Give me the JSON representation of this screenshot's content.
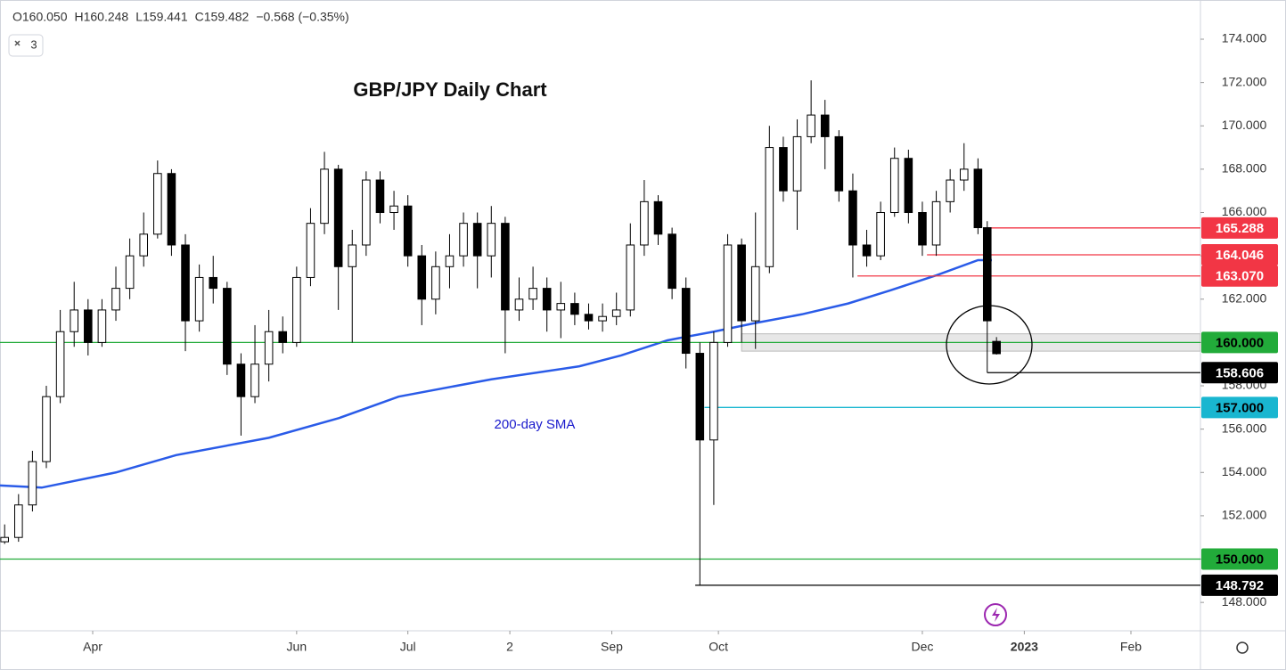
{
  "chart_data": {
    "type": "candlestick",
    "title": "GBP/JPY Daily Chart",
    "header": [
      "O160.050",
      "H160.248",
      "L159.441",
      "C159.482",
      "−0.568 (−0.35%)"
    ],
    "interval_button": "3",
    "up_color": "#ffffff",
    "down_color": "#000000",
    "x": [
      0,
      3,
      6,
      9,
      12,
      15,
      18,
      21,
      24,
      27,
      30,
      33,
      36,
      39,
      42,
      45,
      48,
      51,
      54,
      57,
      60,
      63,
      66,
      69,
      72,
      75,
      78,
      81,
      84,
      87,
      90,
      93,
      96,
      99,
      102,
      105,
      108,
      111,
      114,
      117,
      120,
      123,
      126,
      129,
      132,
      135,
      138,
      141,
      144,
      147,
      150,
      153,
      156,
      159,
      162,
      165,
      168,
      171,
      174,
      177,
      180,
      183,
      186,
      189,
      192,
      195,
      198,
      201,
      204,
      207,
      210,
      212,
      214
    ],
    "open": [
      150.8,
      151.0,
      152.5,
      154.5,
      157.5,
      160.5,
      161.5,
      160.0,
      161.5,
      162.5,
      164.0,
      165.0,
      167.8,
      164.5,
      161.0,
      163.0,
      162.5,
      159.0,
      157.5,
      159.0,
      160.5,
      160.0,
      163.0,
      165.5,
      168.0,
      163.5,
      164.5,
      167.5,
      166.0,
      166.3,
      164.0,
      162.0,
      163.5,
      164.0,
      165.5,
      164.0,
      165.5,
      161.5,
      162.0,
      162.5,
      161.5,
      161.8,
      161.3,
      161.0,
      161.2,
      161.5,
      164.5,
      166.5,
      165.0,
      162.5,
      159.5,
      155.5,
      160.0,
      164.5,
      161.0,
      163.5,
      169.0,
      167.0,
      169.5,
      170.5,
      169.5,
      167.0,
      164.5,
      164.0,
      166.0,
      168.5,
      166.0,
      164.5,
      166.5,
      167.5,
      168.0,
      165.3,
      160.05
    ],
    "high": [
      151.6,
      153.0,
      155.0,
      158.0,
      161.5,
      162.8,
      162.0,
      162.0,
      163.5,
      164.8,
      166.0,
      168.4,
      168.0,
      165.0,
      163.6,
      164.0,
      162.8,
      159.5,
      160.8,
      161.5,
      161.2,
      163.5,
      166.2,
      168.8,
      168.2,
      165.2,
      167.9,
      167.9,
      167.0,
      166.8,
      164.5,
      164.2,
      165.0,
      166.0,
      166.0,
      166.3,
      165.8,
      163.0,
      163.5,
      163.0,
      162.8,
      162.3,
      161.8,
      161.8,
      162.3,
      165.5,
      167.5,
      166.8,
      165.3,
      163.0,
      160.0,
      160.5,
      165.0,
      164.8,
      166.0,
      170.0,
      169.5,
      170.3,
      172.1,
      171.2,
      169.8,
      167.8,
      165.2,
      166.5,
      169.0,
      168.9,
      166.5,
      167.0,
      168.0,
      169.2,
      168.5,
      165.6,
      160.248
    ],
    "low": [
      150.7,
      150.8,
      152.2,
      154.2,
      157.2,
      159.8,
      159.4,
      159.8,
      161.0,
      162.0,
      163.5,
      164.8,
      164.0,
      159.6,
      160.5,
      161.8,
      158.5,
      155.7,
      157.2,
      158.2,
      159.5,
      159.8,
      162.6,
      165.0,
      161.5,
      160.0,
      164.0,
      165.5,
      165.2,
      163.5,
      160.8,
      161.3,
      162.5,
      163.5,
      162.5,
      163.0,
      159.5,
      161.0,
      161.5,
      160.5,
      160.2,
      160.8,
      160.6,
      160.5,
      160.8,
      161.2,
      164.0,
      164.5,
      162.0,
      158.8,
      148.792,
      152.5,
      159.8,
      160.0,
      159.7,
      163.2,
      166.5,
      165.2,
      169.2,
      168.0,
      166.5,
      163.0,
      163.5,
      163.8,
      165.8,
      165.5,
      164.0,
      164.0,
      166.0,
      167.0,
      165.0,
      158.606,
      159.441
    ],
    "close": [
      151.0,
      152.5,
      154.5,
      157.5,
      160.5,
      161.5,
      160.0,
      161.5,
      162.5,
      164.0,
      165.0,
      167.8,
      164.5,
      161.0,
      163.0,
      162.5,
      159.0,
      157.5,
      159.0,
      160.5,
      160.0,
      163.0,
      165.5,
      168.0,
      163.5,
      164.5,
      167.5,
      166.0,
      166.3,
      164.0,
      162.0,
      163.5,
      164.0,
      165.5,
      164.0,
      165.5,
      161.5,
      162.0,
      162.5,
      161.5,
      161.8,
      161.3,
      161.0,
      161.2,
      161.5,
      164.5,
      166.5,
      165.0,
      162.5,
      159.5,
      155.5,
      160.0,
      164.5,
      161.0,
      163.5,
      169.0,
      167.0,
      169.5,
      170.5,
      169.5,
      167.0,
      164.5,
      164.0,
      166.0,
      168.5,
      166.0,
      164.5,
      166.5,
      167.5,
      168.0,
      165.3,
      161.0,
      159.482
    ],
    "sma": {
      "label": "200-day SMA",
      "color": "#2a5be8",
      "x": [
        -1,
        8,
        24,
        37,
        57,
        72,
        85,
        105,
        124,
        133,
        143,
        153,
        162,
        172,
        182,
        191,
        201,
        210,
        213
      ],
      "values": [
        153.4,
        153.3,
        154.0,
        154.8,
        155.6,
        156.5,
        157.5,
        158.3,
        158.9,
        159.4,
        160.1,
        160.5,
        160.9,
        161.3,
        161.8,
        162.4,
        163.1,
        163.8,
        163.8
      ]
    },
    "levels": [
      {
        "value": 165.288,
        "label": "165.288",
        "color": "#f23645",
        "text_color": "#ffffff",
        "start": 212
      },
      {
        "value": 164.046,
        "label": "164.046",
        "color": "#f23645",
        "text_color": "#ffffff",
        "start": 199
      },
      {
        "value": 163.07,
        "label": "163.070",
        "color": "#f23645",
        "text_color": "#ffffff",
        "start": 184
      },
      {
        "value": 160,
        "label": "160.000",
        "color": "#22ab3a",
        "text_color": "#000000",
        "start": -1
      },
      {
        "value": 158.606,
        "label": "158.606",
        "color": "#000000",
        "text_color": "#ffffff",
        "start": 212
      },
      {
        "value": 157,
        "label": "157.000",
        "color": "#19b6d0",
        "text_color": "#000000",
        "start": 151
      },
      {
        "value": 150,
        "label": "150.000",
        "color": "#22ab3a",
        "text_color": "#000000",
        "start": -1
      },
      {
        "value": 148.792,
        "label": "148.792",
        "color": "#000000",
        "text_color": "#ffffff",
        "start": 149
      }
    ],
    "zone": {
      "from": 159.6,
      "to": 160.4,
      "start": 159
    },
    "xlim": [
      -1,
      258
    ],
    "xticks": [
      {
        "value": 19,
        "label": "Apr"
      },
      {
        "value": 63,
        "label": "Jun"
      },
      {
        "value": 87,
        "label": "Jul"
      },
      {
        "value": 109,
        "label": "2"
      },
      {
        "value": 131,
        "label": "Sep"
      },
      {
        "value": 154,
        "label": "Oct"
      },
      {
        "value": 198,
        "label": "Dec"
      },
      {
        "value": 220,
        "label": "2023"
      },
      {
        "value": 243,
        "label": "Feb"
      }
    ],
    "ylim": [
      146.69,
      175.81
    ],
    "yticks": [
      {
        "value": 148,
        "label": "148.000"
      },
      {
        "value": 150,
        "label": "150.000"
      },
      {
        "value": 152,
        "label": "152.000"
      },
      {
        "value": 154,
        "label": "154.000"
      },
      {
        "value": 156,
        "label": "156.000"
      },
      {
        "value": 158,
        "label": "158.000"
      },
      {
        "value": 160,
        "label": "160.000"
      },
      {
        "value": 162,
        "label": "162.000"
      },
      {
        "value": 164,
        "label": "164.000"
      },
      {
        "value": 166,
        "label": "166.000"
      },
      {
        "value": 168,
        "label": "168.000"
      },
      {
        "value": 170,
        "label": "170.000"
      },
      {
        "value": 172,
        "label": "172.000"
      },
      {
        "value": 174,
        "label": "174.000"
      }
    ]
  }
}
